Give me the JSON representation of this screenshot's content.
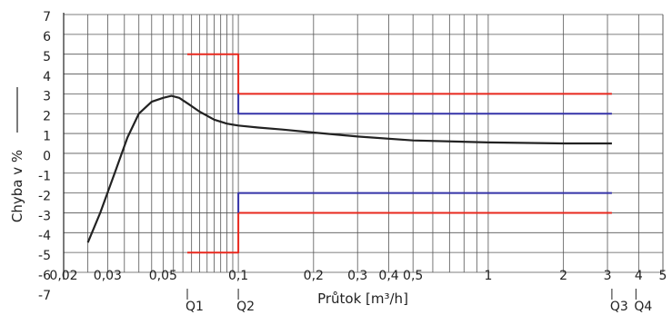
{
  "chart_data": {
    "type": "line",
    "xscale": "log",
    "xlim": [
      0.02,
      5
    ],
    "ylim": [
      -6,
      7
    ],
    "grid": true,
    "xlabel": "Průtok [m³/h]",
    "ylabel": "Chyba v %",
    "x_tick_labels": [
      {
        "v": 0.02,
        "label": "0,02"
      },
      {
        "v": 0.03,
        "label": "0,03"
      },
      {
        "v": 0.05,
        "label": "0,05"
      },
      {
        "v": 0.1,
        "label": "0,1"
      },
      {
        "v": 0.2,
        "label": "0,2"
      },
      {
        "v": 0.3,
        "label": "0,3"
      },
      {
        "v": 0.4,
        "label": "0,4"
      },
      {
        "v": 0.5,
        "label": "0,5"
      },
      {
        "v": 1,
        "label": "1"
      },
      {
        "v": 2,
        "label": "2"
      },
      {
        "v": 3,
        "label": "3"
      },
      {
        "v": 4,
        "label": "4"
      },
      {
        "v": 5,
        "label": "5"
      }
    ],
    "y_tick_labels": [
      "7",
      "6",
      "5",
      "4",
      "3",
      "2",
      "1",
      "0",
      "-1",
      "-2",
      "-3",
      "-4",
      "-5",
      "-6",
      "-7"
    ],
    "q_markers": [
      {
        "label": "Q1",
        "x": 0.0625
      },
      {
        "label": "Q2",
        "x": 0.1
      },
      {
        "label": "Q3",
        "x": 3.125
      },
      {
        "label": "Q4",
        "x": 3.9
      }
    ],
    "series": [
      {
        "color": "#222222",
        "x": [
          0.025,
          0.028,
          0.032,
          0.036,
          0.04,
          0.045,
          0.05,
          0.054,
          0.058,
          0.063,
          0.07,
          0.08,
          0.09,
          0.1,
          0.12,
          0.15,
          0.2,
          0.3,
          0.5,
          1.0,
          2.0,
          3.125
        ],
        "y": [
          -4.5,
          -3.0,
          -1.0,
          0.8,
          2.0,
          2.6,
          2.8,
          2.9,
          2.8,
          2.5,
          2.1,
          1.7,
          1.5,
          1.4,
          1.3,
          1.2,
          1.05,
          0.85,
          0.65,
          0.55,
          0.5,
          0.5
        ]
      },
      {
        "color": "#e8281e",
        "x": [
          0.0625,
          0.1,
          0.1,
          3.125
        ],
        "y": [
          5,
          5,
          3,
          3
        ]
      },
      {
        "color": "#e8281e",
        "x": [
          0.0625,
          0.1,
          0.1,
          3.125
        ],
        "y": [
          -5,
          -5,
          -3,
          -3
        ]
      },
      {
        "color": "#3533a8",
        "x": [
          0.1,
          0.1,
          3.125
        ],
        "y": [
          3,
          2,
          2
        ]
      },
      {
        "color": "#3533a8",
        "x": [
          0.1,
          0.1,
          3.125
        ],
        "y": [
          -3,
          -2,
          -2
        ]
      }
    ],
    "colors": {
      "grid": "#555555",
      "axis": "#222222"
    }
  }
}
